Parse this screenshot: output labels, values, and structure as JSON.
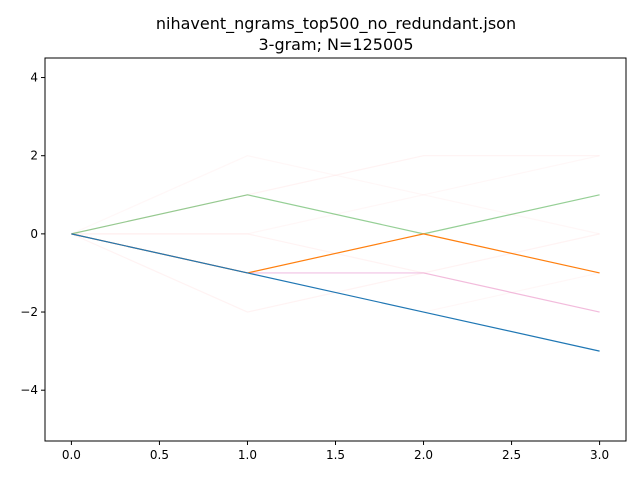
{
  "chart_data": {
    "type": "line",
    "title": "nihavent_ngrams_top500_no_redundant.json",
    "subtitle": "3-gram; N=125005",
    "xlabel": "",
    "ylabel": "",
    "xlim": [
      -0.15,
      3.15
    ],
    "ylim": [
      -5.3,
      4.5
    ],
    "xticks": [
      0.0,
      0.5,
      1.0,
      1.5,
      2.0,
      2.5,
      3.0
    ],
    "xtick_labels": [
      "0.0",
      "0.5",
      "1.0",
      "1.5",
      "2.0",
      "2.5",
      "3.0"
    ],
    "yticks": [
      -4,
      -2,
      0,
      2,
      4
    ],
    "ytick_labels": [
      "−4",
      "−2",
      "0",
      "2",
      "4"
    ],
    "grid": false,
    "legend": "none",
    "x": [
      0,
      1,
      2,
      3
    ],
    "series": [
      {
        "values": [
          0,
          -1,
          -2,
          -3
        ],
        "color": "#1f77b4",
        "opacity": 1.0
      },
      {
        "values": [
          0,
          -1,
          0,
          -1
        ],
        "color": "#ff7f0e",
        "opacity": 1.0
      },
      {
        "values": [
          0,
          1,
          0,
          1
        ],
        "color": "#2ca02c",
        "opacity": 0.5
      },
      {
        "values": [
          0,
          -1,
          -1,
          -2
        ],
        "color": "#e377c2",
        "opacity": 0.45
      },
      {
        "values": [
          0,
          1,
          2,
          2
        ],
        "color": "#ffdcdc",
        "opacity": 0.35
      },
      {
        "values": [
          0,
          -2,
          -1,
          0
        ],
        "color": "#ffdcdc",
        "opacity": 0.35
      },
      {
        "values": [
          0,
          0,
          -1,
          -2
        ],
        "color": "#ffdcdc",
        "opacity": 0.35
      },
      {
        "values": [
          0,
          2,
          1,
          0
        ],
        "color": "#ffe4e4",
        "opacity": 0.3
      },
      {
        "values": [
          0,
          0,
          1,
          2
        ],
        "color": "#ffe4e4",
        "opacity": 0.3
      },
      {
        "values": [
          0,
          -1,
          -2,
          -1
        ],
        "color": "#ffe4e4",
        "opacity": 0.3
      }
    ]
  }
}
